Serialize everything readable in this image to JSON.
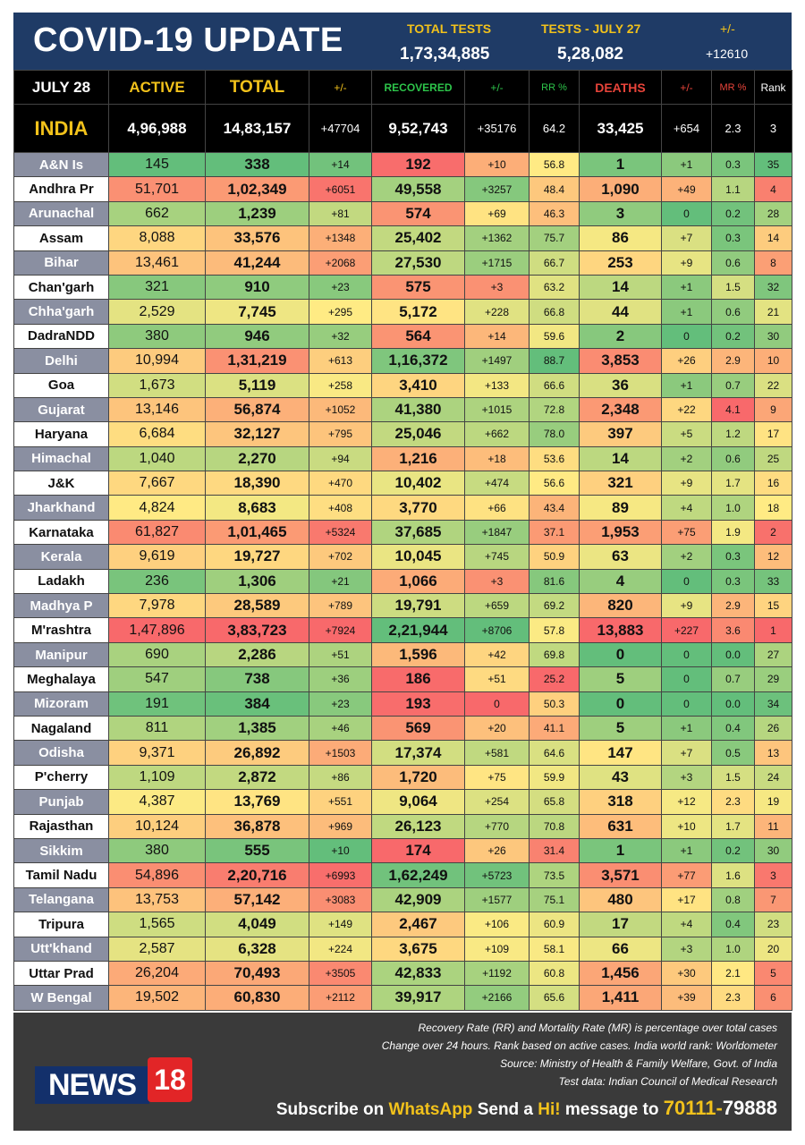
{
  "header": {
    "title": "COVID-19 UPDATE",
    "total_tests_label": "TOTAL TESTS",
    "total_tests_value": "1,73,34,885",
    "tests_day_label": "TESTS - JULY 27",
    "tests_day_value": "5,28,082",
    "change_label": "+/-",
    "change_value": "+12610"
  },
  "columns": {
    "date": "JULY 28",
    "active": "ACTIVE",
    "total": "TOTAL",
    "total_change": "+/-",
    "recovered": "RECOVERED",
    "recovered_change": "+/-",
    "rr": "RR %",
    "deaths": "DEATHS",
    "deaths_change": "+/-",
    "mr": "MR %",
    "rank": "Rank"
  },
  "india": {
    "name": "INDIA",
    "active": "4,96,988",
    "total": "14,83,157",
    "total_change": "+47704",
    "recovered": "9,52,743",
    "recovered_change": "+35176",
    "rr": "64.2",
    "deaths": "33,425",
    "deaths_change": "+654",
    "mr": "2.3",
    "rank": "3"
  },
  "rows": [
    {
      "name": "A&N Is",
      "active": "145",
      "total": "338",
      "total_change": "+14",
      "recovered": "192",
      "recovered_change": "+10",
      "rr": "56.8",
      "deaths": "1",
      "deaths_change": "+1",
      "mr": "0.3",
      "rank": "35"
    },
    {
      "name": "Andhra Pr",
      "active": "51,701",
      "total": "1,02,349",
      "total_change": "+6051",
      "recovered": "49,558",
      "recovered_change": "+3257",
      "rr": "48.4",
      "deaths": "1,090",
      "deaths_change": "+49",
      "mr": "1.1",
      "rank": "4"
    },
    {
      "name": "Arunachal",
      "active": "662",
      "total": "1,239",
      "total_change": "+81",
      "recovered": "574",
      "recovered_change": "+69",
      "rr": "46.3",
      "deaths": "3",
      "deaths_change": "0",
      "mr": "0.2",
      "rank": "28"
    },
    {
      "name": "Assam",
      "active": "8,088",
      "total": "33,576",
      "total_change": "+1348",
      "recovered": "25,402",
      "recovered_change": "+1362",
      "rr": "75.7",
      "deaths": "86",
      "deaths_change": "+7",
      "mr": "0.3",
      "rank": "14"
    },
    {
      "name": "Bihar",
      "active": "13,461",
      "total": "41,244",
      "total_change": "+2068",
      "recovered": "27,530",
      "recovered_change": "+1715",
      "rr": "66.7",
      "deaths": "253",
      "deaths_change": "+9",
      "mr": "0.6",
      "rank": "8"
    },
    {
      "name": "Chan'garh",
      "active": "321",
      "total": "910",
      "total_change": "+23",
      "recovered": "575",
      "recovered_change": "+3",
      "rr": "63.2",
      "deaths": "14",
      "deaths_change": "+1",
      "mr": "1.5",
      "rank": "32"
    },
    {
      "name": "Chha'garh",
      "active": "2,529",
      "total": "7,745",
      "total_change": "+295",
      "recovered": "5,172",
      "recovered_change": "+228",
      "rr": "66.8",
      "deaths": "44",
      "deaths_change": "+1",
      "mr": "0.6",
      "rank": "21"
    },
    {
      "name": "DadraNDD",
      "active": "380",
      "total": "946",
      "total_change": "+32",
      "recovered": "564",
      "recovered_change": "+14",
      "rr": "59.6",
      "deaths": "2",
      "deaths_change": "0",
      "mr": "0.2",
      "rank": "30"
    },
    {
      "name": "Delhi",
      "active": "10,994",
      "total": "1,31,219",
      "total_change": "+613",
      "recovered": "1,16,372",
      "recovered_change": "+1497",
      "rr": "88.7",
      "deaths": "3,853",
      "deaths_change": "+26",
      "mr": "2.9",
      "rank": "10"
    },
    {
      "name": "Goa",
      "active": "1,673",
      "total": "5,119",
      "total_change": "+258",
      "recovered": "3,410",
      "recovered_change": "+133",
      "rr": "66.6",
      "deaths": "36",
      "deaths_change": "+1",
      "mr": "0.7",
      "rank": "22"
    },
    {
      "name": "Gujarat",
      "active": "13,146",
      "total": "56,874",
      "total_change": "+1052",
      "recovered": "41,380",
      "recovered_change": "+1015",
      "rr": "72.8",
      "deaths": "2,348",
      "deaths_change": "+22",
      "mr": "4.1",
      "rank": "9"
    },
    {
      "name": "Haryana",
      "active": "6,684",
      "total": "32,127",
      "total_change": "+795",
      "recovered": "25,046",
      "recovered_change": "+662",
      "rr": "78.0",
      "deaths": "397",
      "deaths_change": "+5",
      "mr": "1.2",
      "rank": "17"
    },
    {
      "name": "Himachal",
      "active": "1,040",
      "total": "2,270",
      "total_change": "+94",
      "recovered": "1,216",
      "recovered_change": "+18",
      "rr": "53.6",
      "deaths": "14",
      "deaths_change": "+2",
      "mr": "0.6",
      "rank": "25"
    },
    {
      "name": "J&K",
      "active": "7,667",
      "total": "18,390",
      "total_change": "+470",
      "recovered": "10,402",
      "recovered_change": "+474",
      "rr": "56.6",
      "deaths": "321",
      "deaths_change": "+9",
      "mr": "1.7",
      "rank": "16"
    },
    {
      "name": "Jharkhand",
      "active": "4,824",
      "total": "8,683",
      "total_change": "+408",
      "recovered": "3,770",
      "recovered_change": "+66",
      "rr": "43.4",
      "deaths": "89",
      "deaths_change": "+4",
      "mr": "1.0",
      "rank": "18"
    },
    {
      "name": "Karnataka",
      "active": "61,827",
      "total": "1,01,465",
      "total_change": "+5324",
      "recovered": "37,685",
      "recovered_change": "+1847",
      "rr": "37.1",
      "deaths": "1,953",
      "deaths_change": "+75",
      "mr": "1.9",
      "rank": "2"
    },
    {
      "name": "Kerala",
      "active": "9,619",
      "total": "19,727",
      "total_change": "+702",
      "recovered": "10,045",
      "recovered_change": "+745",
      "rr": "50.9",
      "deaths": "63",
      "deaths_change": "+2",
      "mr": "0.3",
      "rank": "12"
    },
    {
      "name": "Ladakh",
      "active": "236",
      "total": "1,306",
      "total_change": "+21",
      "recovered": "1,066",
      "recovered_change": "+3",
      "rr": "81.6",
      "deaths": "4",
      "deaths_change": "0",
      "mr": "0.3",
      "rank": "33"
    },
    {
      "name": "Madhya P",
      "active": "7,978",
      "total": "28,589",
      "total_change": "+789",
      "recovered": "19,791",
      "recovered_change": "+659",
      "rr": "69.2",
      "deaths": "820",
      "deaths_change": "+9",
      "mr": "2.9",
      "rank": "15"
    },
    {
      "name": "M'rashtra",
      "active": "1,47,896",
      "total": "3,83,723",
      "total_change": "+7924",
      "recovered": "2,21,944",
      "recovered_change": "+8706",
      "rr": "57.8",
      "deaths": "13,883",
      "deaths_change": "+227",
      "mr": "3.6",
      "rank": "1"
    },
    {
      "name": "Manipur",
      "active": "690",
      "total": "2,286",
      "total_change": "+51",
      "recovered": "1,596",
      "recovered_change": "+42",
      "rr": "69.8",
      "deaths": "0",
      "deaths_change": "0",
      "mr": "0.0",
      "rank": "27"
    },
    {
      "name": "Meghalaya",
      "active": "547",
      "total": "738",
      "total_change": "+36",
      "recovered": "186",
      "recovered_change": "+51",
      "rr": "25.2",
      "deaths": "5",
      "deaths_change": "0",
      "mr": "0.7",
      "rank": "29"
    },
    {
      "name": "Mizoram",
      "active": "191",
      "total": "384",
      "total_change": "+23",
      "recovered": "193",
      "recovered_change": "0",
      "rr": "50.3",
      "deaths": "0",
      "deaths_change": "0",
      "mr": "0.0",
      "rank": "34"
    },
    {
      "name": "Nagaland",
      "active": "811",
      "total": "1,385",
      "total_change": "+46",
      "recovered": "569",
      "recovered_change": "+20",
      "rr": "41.1",
      "deaths": "5",
      "deaths_change": "+1",
      "mr": "0.4",
      "rank": "26"
    },
    {
      "name": "Odisha",
      "active": "9,371",
      "total": "26,892",
      "total_change": "+1503",
      "recovered": "17,374",
      "recovered_change": "+581",
      "rr": "64.6",
      "deaths": "147",
      "deaths_change": "+7",
      "mr": "0.5",
      "rank": "13"
    },
    {
      "name": "P'cherry",
      "active": "1,109",
      "total": "2,872",
      "total_change": "+86",
      "recovered": "1,720",
      "recovered_change": "+75",
      "rr": "59.9",
      "deaths": "43",
      "deaths_change": "+3",
      "mr": "1.5",
      "rank": "24"
    },
    {
      "name": "Punjab",
      "active": "4,387",
      "total": "13,769",
      "total_change": "+551",
      "recovered": "9,064",
      "recovered_change": "+254",
      "rr": "65.8",
      "deaths": "318",
      "deaths_change": "+12",
      "mr": "2.3",
      "rank": "19"
    },
    {
      "name": "Rajasthan",
      "active": "10,124",
      "total": "36,878",
      "total_change": "+969",
      "recovered": "26,123",
      "recovered_change": "+770",
      "rr": "70.8",
      "deaths": "631",
      "deaths_change": "+10",
      "mr": "1.7",
      "rank": "11"
    },
    {
      "name": "Sikkim",
      "active": "380",
      "total": "555",
      "total_change": "+10",
      "recovered": "174",
      "recovered_change": "+26",
      "rr": "31.4",
      "deaths": "1",
      "deaths_change": "+1",
      "mr": "0.2",
      "rank": "30"
    },
    {
      "name": "Tamil Nadu",
      "active": "54,896",
      "total": "2,20,716",
      "total_change": "+6993",
      "recovered": "1,62,249",
      "recovered_change": "+5723",
      "rr": "73.5",
      "deaths": "3,571",
      "deaths_change": "+77",
      "mr": "1.6",
      "rank": "3"
    },
    {
      "name": "Telangana",
      "active": "13,753",
      "total": "57,142",
      "total_change": "+3083",
      "recovered": "42,909",
      "recovered_change": "+1577",
      "rr": "75.1",
      "deaths": "480",
      "deaths_change": "+17",
      "mr": "0.8",
      "rank": "7"
    },
    {
      "name": "Tripura",
      "active": "1,565",
      "total": "4,049",
      "total_change": "+149",
      "recovered": "2,467",
      "recovered_change": "+106",
      "rr": "60.9",
      "deaths": "17",
      "deaths_change": "+4",
      "mr": "0.4",
      "rank": "23"
    },
    {
      "name": "Utt'khand",
      "active": "2,587",
      "total": "6,328",
      "total_change": "+224",
      "recovered": "3,675",
      "recovered_change": "+109",
      "rr": "58.1",
      "deaths": "66",
      "deaths_change": "+3",
      "mr": "1.0",
      "rank": "20"
    },
    {
      "name": "Uttar Prad",
      "active": "26,204",
      "total": "70,493",
      "total_change": "+3505",
      "recovered": "42,833",
      "recovered_change": "+1192",
      "rr": "60.8",
      "deaths": "1,456",
      "deaths_change": "+30",
      "mr": "2.1",
      "rank": "5"
    },
    {
      "name": "W Bengal",
      "active": "19,502",
      "total": "60,830",
      "total_change": "+2112",
      "recovered": "39,917",
      "recovered_change": "+2166",
      "rr": "65.6",
      "deaths": "1,411",
      "deaths_change": "+39",
      "mr": "2.3",
      "rank": "6"
    }
  ],
  "colors": {
    "header_bg": "#1f3b66",
    "accent_yellow": "#f2c21b",
    "accent_green": "#2dc44a",
    "accent_red": "#e8443a",
    "scale_green": "#63be7b",
    "scale_yellow": "#ffeb84",
    "scale_red": "#f8696b",
    "footer_bg": "#3a3a3a"
  },
  "footer": {
    "notes": [
      "Recovery Rate (RR) and Mortality Rate (MR) is percentage over total cases",
      "Change over 24 hours. Rank based on active cases. India world rank: Worldometer",
      "Source: Ministry of Health & Family Welfare, Govt. of India",
      "Test data: Indian Council of Medical Research"
    ],
    "logo_text": "NEWS",
    "logo_number": "18",
    "subscribe_prefix": "Subscribe on",
    "subscribe_app": "WhatsApp",
    "subscribe_mid": "Send a",
    "subscribe_word": "Hi!",
    "subscribe_suffix": "message to",
    "phone_part1": "70111-",
    "phone_part2": "79888"
  }
}
